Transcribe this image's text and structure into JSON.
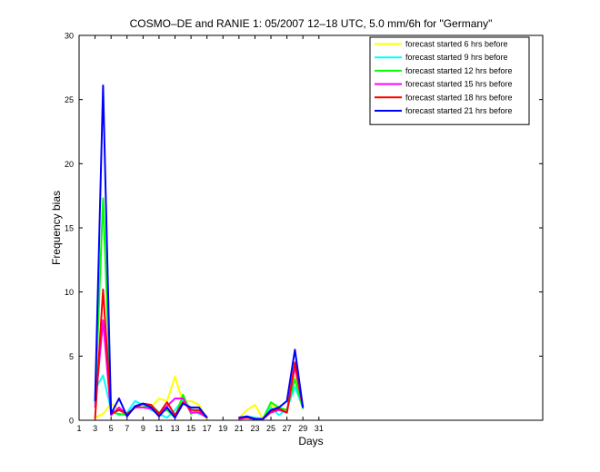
{
  "chart_data": {
    "type": "line",
    "title": "COSMO–DE and RANIE 1: 05/2007 12–18 UTC, 5.0 mm/6h for \"Germany\"",
    "xlabel": "Days",
    "ylabel": "Frequency bias",
    "xlim": [
      1,
      59
    ],
    "ylim": [
      0,
      30
    ],
    "xticks": [
      1,
      3,
      5,
      7,
      9,
      11,
      13,
      15,
      17,
      19,
      21,
      23,
      25,
      27,
      29,
      31
    ],
    "yticks": [
      0,
      5,
      10,
      15,
      20,
      25,
      30
    ],
    "grid": false,
    "legend_position": "top-right",
    "series": [
      {
        "name": "forecast started 6 hrs before",
        "color": "#ffff00",
        "x": [
          3,
          4,
          5,
          6,
          7,
          8,
          9,
          10,
          11,
          12,
          13,
          14,
          15,
          16,
          17,
          null,
          21,
          22,
          23,
          24,
          25,
          26,
          27,
          28,
          29
        ],
        "y": [
          0.2,
          0.5,
          1.3,
          0.8,
          0.5,
          1.0,
          1.2,
          1.0,
          1.7,
          1.5,
          3.4,
          1.4,
          1.5,
          1.2,
          0.1,
          null,
          0.2,
          0.8,
          1.2,
          0.1,
          1.2,
          0.9,
          0.6,
          3.4,
          1.1
        ]
      },
      {
        "name": "forecast started 9 hrs before",
        "color": "#00ffff",
        "x": [
          3,
          4,
          5,
          6,
          7,
          8,
          9,
          10,
          11,
          12,
          13,
          14,
          15,
          16,
          17,
          null,
          21,
          22,
          23,
          24,
          25,
          26,
          27,
          28,
          29
        ],
        "y": [
          2.4,
          3.5,
          0.8,
          0.4,
          0.6,
          1.5,
          1.2,
          0.8,
          0.5,
          0.2,
          0.8,
          1.6,
          0.9,
          0.5,
          0.3,
          null,
          0.2,
          0.3,
          0.2,
          0.1,
          1.0,
          0.4,
          0.9,
          2.6,
          1.0
        ]
      },
      {
        "name": "forecast started 12 hrs before",
        "color": "#00ff00",
        "x": [
          3,
          4,
          5,
          6,
          7,
          8,
          9,
          10,
          11,
          12,
          13,
          14,
          15,
          16,
          17,
          null,
          21,
          22,
          23,
          24,
          25,
          26,
          27,
          28,
          29
        ],
        "y": [
          1.3,
          17.3,
          0.6,
          0.5,
          0.4,
          1.1,
          1.0,
          1.2,
          0.6,
          0.8,
          0.2,
          2.0,
          0.5,
          0.8,
          0.2,
          null,
          0.1,
          0.2,
          0.1,
          0.1,
          1.4,
          1.0,
          0.8,
          3.2,
          0.9
        ]
      },
      {
        "name": "forecast started 15 hrs before",
        "color": "#ff00ff",
        "x": [
          3,
          4,
          5,
          6,
          7,
          8,
          9,
          10,
          11,
          12,
          13,
          14,
          15,
          16,
          17,
          null,
          21,
          22,
          23,
          24,
          25,
          26,
          27,
          28,
          29
        ],
        "y": [
          1.0,
          7.8,
          0.4,
          1.0,
          0.4,
          1.0,
          1.0,
          0.9,
          0.5,
          1.1,
          1.7,
          1.7,
          0.6,
          0.6,
          0.2,
          null,
          0.1,
          0.2,
          0.1,
          0.1,
          0.6,
          0.8,
          0.6,
          4.2,
          1.0
        ]
      },
      {
        "name": "forecast started 18 hrs before",
        "color": "#ff0000",
        "x": [
          3,
          4,
          5,
          6,
          7,
          8,
          9,
          10,
          11,
          12,
          13,
          14,
          15,
          16,
          17,
          null,
          21,
          22,
          23,
          24,
          25,
          26,
          27,
          28,
          29
        ],
        "y": [
          0.1,
          10.2,
          0.5,
          0.8,
          0.5,
          1.0,
          1.3,
          1.2,
          0.5,
          1.4,
          0.4,
          1.4,
          0.8,
          0.8,
          0.2,
          null,
          0.2,
          0.2,
          0.1,
          0.1,
          0.7,
          0.9,
          0.6,
          4.5,
          1.0
        ]
      },
      {
        "name": "forecast started 21 hrs before",
        "color": "#0000ff",
        "x": [
          3,
          4,
          5,
          6,
          7,
          8,
          9,
          10,
          11,
          12,
          13,
          14,
          15,
          16,
          17,
          null,
          21,
          22,
          23,
          24,
          25,
          26,
          27,
          28,
          29
        ],
        "y": [
          1.5,
          26.1,
          0.5,
          1.7,
          0.3,
          1.1,
          1.3,
          1.0,
          0.3,
          1.0,
          0.2,
          1.3,
          1.0,
          1.0,
          0.2,
          null,
          0.2,
          0.3,
          0.1,
          0.1,
          0.8,
          1.0,
          1.5,
          5.5,
          1.0
        ]
      }
    ]
  }
}
